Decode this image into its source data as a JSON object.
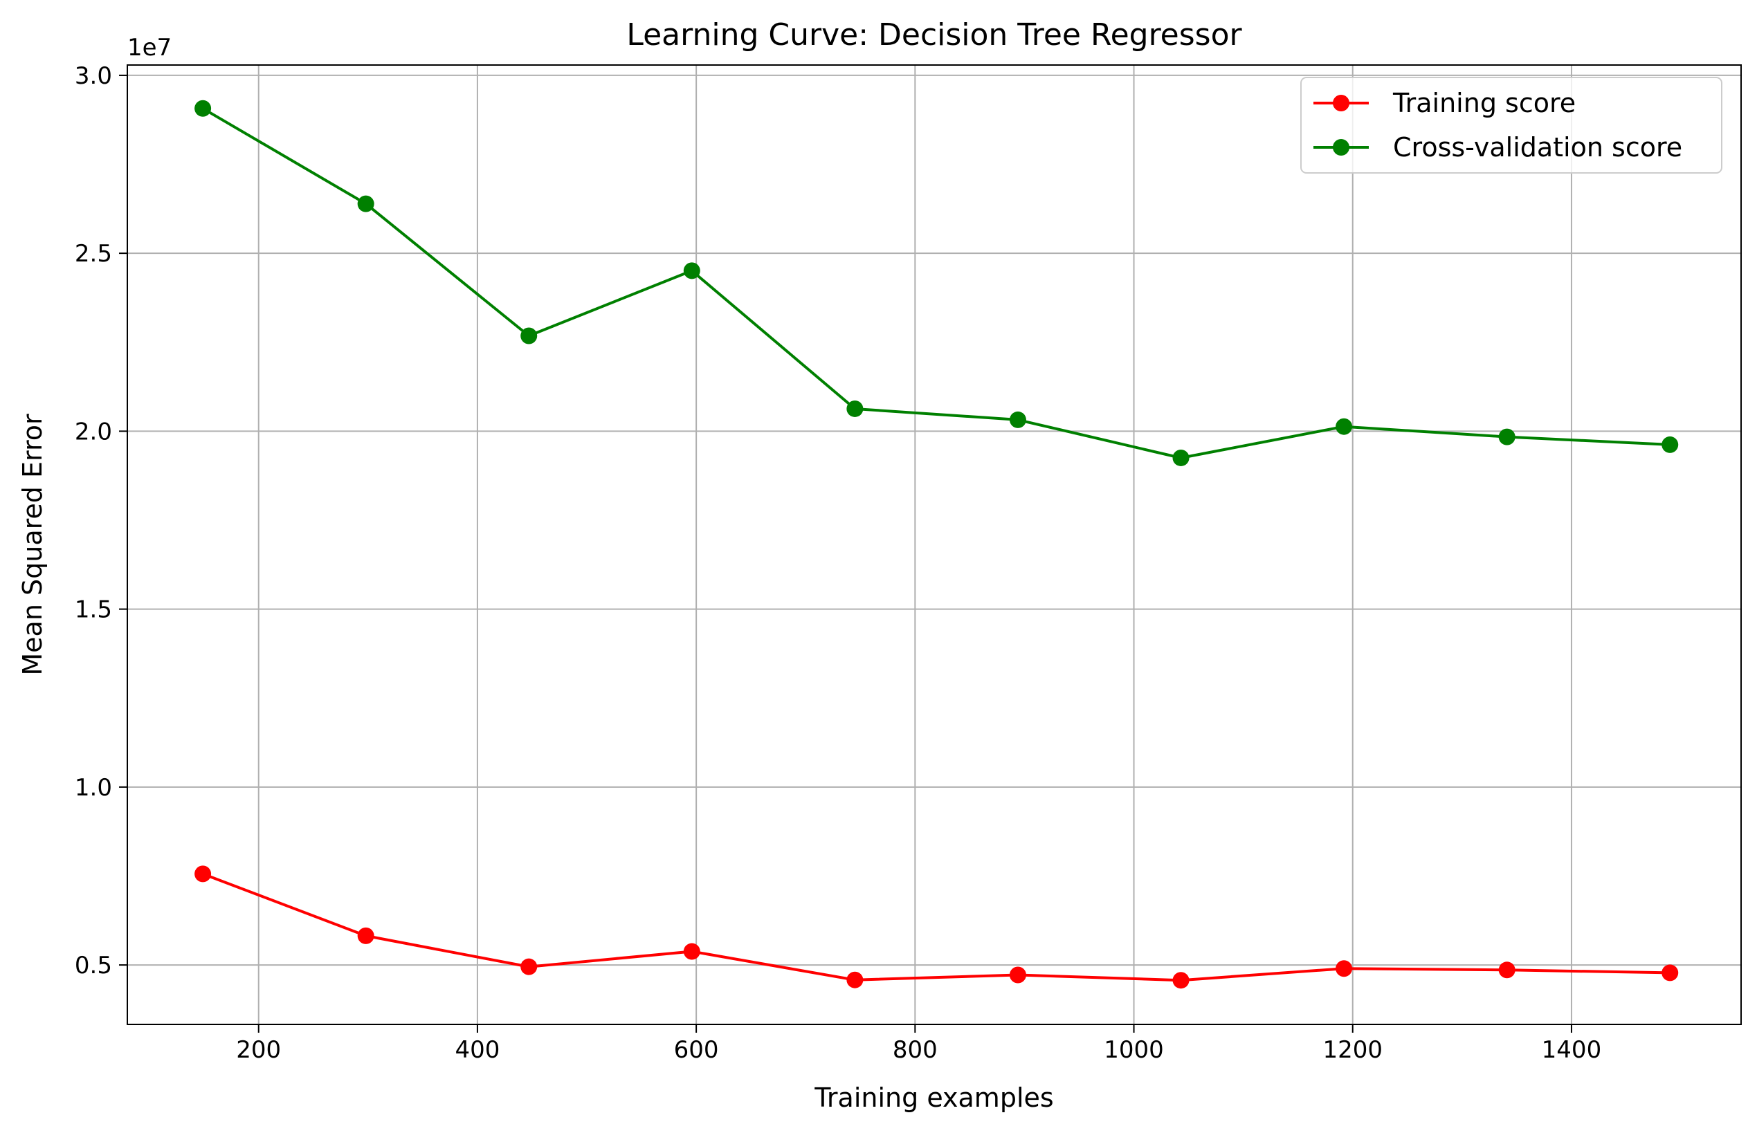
{
  "chart_data": {
    "type": "line",
    "title": "Learning Curve: Decision Tree Regressor",
    "xlabel": "Training examples",
    "ylabel": "Mean Squared Error",
    "y_offset_label": "1e7",
    "xlim": [
      80,
      1555
    ],
    "ylim": [
      3330000,
      30290000
    ],
    "x_ticks": [
      200,
      400,
      600,
      800,
      1000,
      1200,
      1400
    ],
    "x_tick_labels": [
      "200",
      "400",
      "600",
      "800",
      "1000",
      "1200",
      "1400"
    ],
    "y_ticks": [
      5000000,
      10000000,
      15000000,
      20000000,
      25000000,
      30000000
    ],
    "y_tick_labels": [
      "0.5",
      "1.0",
      "1.5",
      "2.0",
      "2.5",
      "3.0"
    ],
    "grid": true,
    "legend_position": "top-right",
    "x": [
      149,
      298,
      447,
      596,
      745,
      894,
      1043,
      1192,
      1341,
      1490
    ],
    "series": [
      {
        "name": "Training score",
        "color": "#ff0000",
        "marker": "circle",
        "values": [
          7560000,
          5820000,
          4950000,
          5380000,
          4580000,
          4720000,
          4570000,
          4900000,
          4860000,
          4780000
        ]
      },
      {
        "name": "Cross-validation score",
        "color": "#008000",
        "marker": "circle",
        "values": [
          29070000,
          26390000,
          22680000,
          24510000,
          20630000,
          20320000,
          19250000,
          20130000,
          19840000,
          19620000
        ]
      }
    ]
  }
}
